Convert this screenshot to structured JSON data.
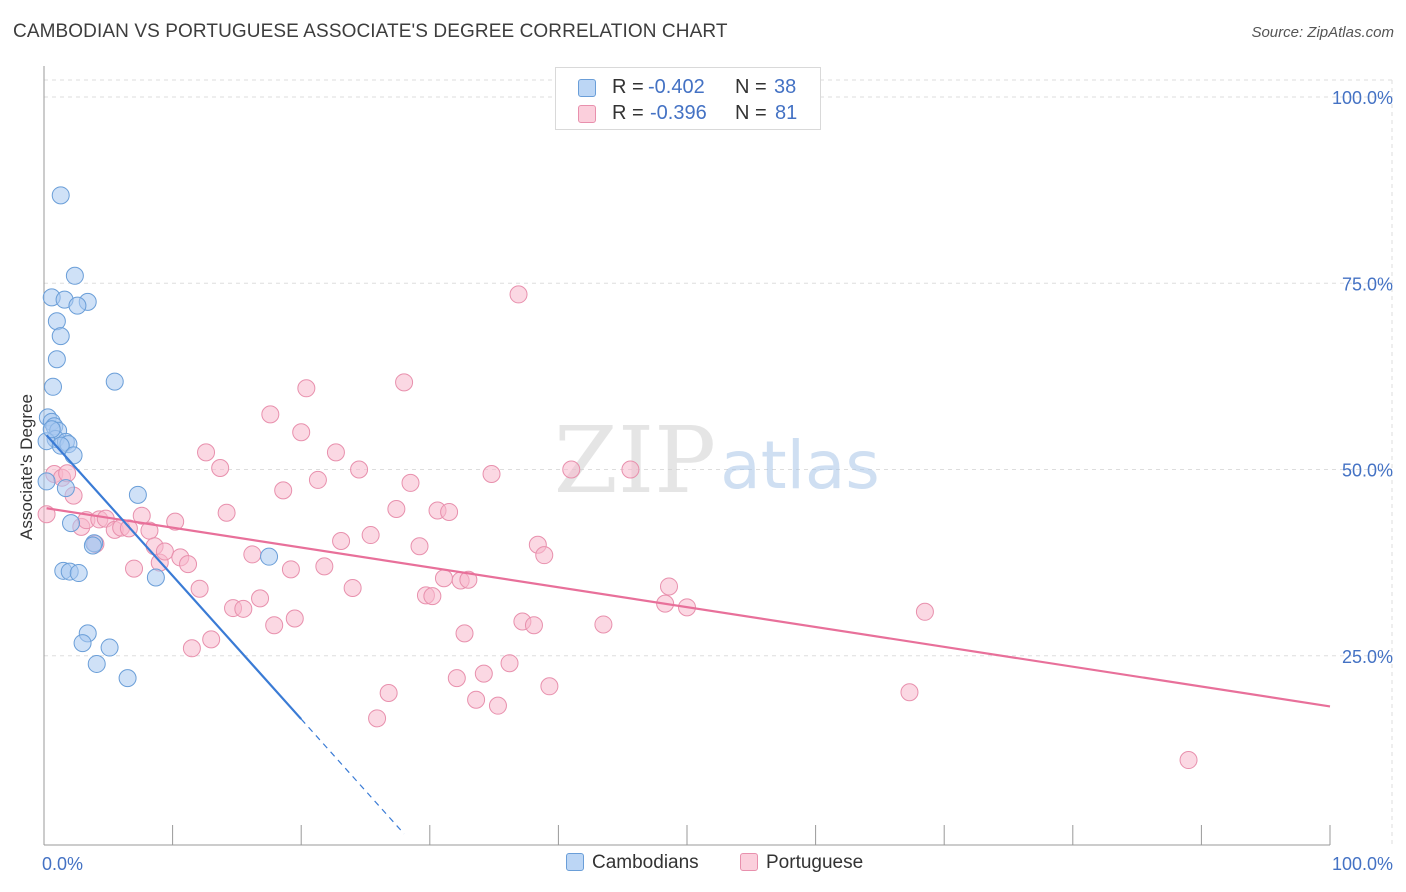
{
  "title": "CAMBODIAN VS PORTUGUESE ASSOCIATE'S DEGREE CORRELATION CHART",
  "source": "Source: ZipAtlas.com",
  "watermark": {
    "zip": "ZIP",
    "atlas": "atlas"
  },
  "legend": {
    "rows": [
      {
        "r_label": "R =",
        "r_value": "-0.402",
        "n_label": "N =",
        "n_value": "38"
      },
      {
        "r_label": "R =",
        "r_value": "-0.396",
        "n_label": "N =",
        "n_value": "81"
      }
    ]
  },
  "bottom_legend": {
    "cambodians": "Cambodians",
    "portuguese": "Portuguese"
  },
  "colors": {
    "cambodian_fill": "#a8c8f0",
    "cambodian_stroke": "#6a9ed8",
    "cambodian_line": "#3a7bd5",
    "portuguese_fill": "#f7b8cc",
    "portuguese_stroke": "#e890ad",
    "portuguese_line": "#e8709a",
    "axis_text": "#4472c4",
    "grid": "#dddddd"
  },
  "chart_data": {
    "type": "scatter",
    "title": "CAMBODIAN VS PORTUGUESE ASSOCIATE'S DEGREE CORRELATION CHART",
    "xlabel": "",
    "ylabel": "Associate's Degree",
    "xlim": [
      0,
      100
    ],
    "ylim": [
      0,
      100
    ],
    "x_tick_labels": {
      "min": "0.0%",
      "max": "100.0%"
    },
    "y_ticks": [
      {
        "value": 25,
        "label": "25.0%"
      },
      {
        "value": 50,
        "label": "50.0%"
      },
      {
        "value": 75,
        "label": "75.0%"
      },
      {
        "value": 100,
        "label": "100.0%"
      }
    ],
    "series": [
      {
        "name": "Cambodians",
        "r": -0.402,
        "n": 38,
        "trend": {
          "x0": 0.2,
          "y0": 54.6,
          "x1": 20.0,
          "y1": 16.5,
          "dash_to_x": 28.0,
          "dash_to_y": 1.1
        },
        "points": [
          [
            1.3,
            86.8
          ],
          [
            2.4,
            76.0
          ],
          [
            0.6,
            73.1
          ],
          [
            1.6,
            72.8
          ],
          [
            3.4,
            72.5
          ],
          [
            2.6,
            72.0
          ],
          [
            1.0,
            69.9
          ],
          [
            1.3,
            67.9
          ],
          [
            1.0,
            64.8
          ],
          [
            5.5,
            61.8
          ],
          [
            0.7,
            61.1
          ],
          [
            0.3,
            57.0
          ],
          [
            0.6,
            56.4
          ],
          [
            0.8,
            55.8
          ],
          [
            1.1,
            55.2
          ],
          [
            0.9,
            54.1
          ],
          [
            0.2,
            53.8
          ],
          [
            1.7,
            53.7
          ],
          [
            1.9,
            53.4
          ],
          [
            1.3,
            53.2
          ],
          [
            2.3,
            51.9
          ],
          [
            0.2,
            48.4
          ],
          [
            1.7,
            47.5
          ],
          [
            7.3,
            46.6
          ],
          [
            2.1,
            42.8
          ],
          [
            3.9,
            40.1
          ],
          [
            3.8,
            39.8
          ],
          [
            17.5,
            38.3
          ],
          [
            1.5,
            36.4
          ],
          [
            2.0,
            36.3
          ],
          [
            2.7,
            36.1
          ],
          [
            8.7,
            35.5
          ],
          [
            3.4,
            28.0
          ],
          [
            3.0,
            26.7
          ],
          [
            5.1,
            26.1
          ],
          [
            4.1,
            23.9
          ],
          [
            6.5,
            22.0
          ],
          [
            0.6,
            55.4
          ]
        ]
      },
      {
        "name": "Portuguese",
        "r": -0.396,
        "n": 81,
        "trend": {
          "x0": 0.2,
          "y0": 44.8,
          "x1": 100.0,
          "y1": 18.2
        },
        "points": [
          [
            0.2,
            44.0
          ],
          [
            0.8,
            49.4
          ],
          [
            1.4,
            48.9
          ],
          [
            1.8,
            49.5
          ],
          [
            2.3,
            46.5
          ],
          [
            2.9,
            42.3
          ],
          [
            3.3,
            43.2
          ],
          [
            4.0,
            40.0
          ],
          [
            4.3,
            43.3
          ],
          [
            4.8,
            43.4
          ],
          [
            5.5,
            41.9
          ],
          [
            6.0,
            42.2
          ],
          [
            6.6,
            42.1
          ],
          [
            7.0,
            36.7
          ],
          [
            7.6,
            43.8
          ],
          [
            8.2,
            41.8
          ],
          [
            8.6,
            39.7
          ],
          [
            9.0,
            37.5
          ],
          [
            9.4,
            39.0
          ],
          [
            10.2,
            43.0
          ],
          [
            10.6,
            38.2
          ],
          [
            11.2,
            37.3
          ],
          [
            12.1,
            34.0
          ],
          [
            12.6,
            52.3
          ],
          [
            13.0,
            27.2
          ],
          [
            13.7,
            50.2
          ],
          [
            14.2,
            44.2
          ],
          [
            14.7,
            31.4
          ],
          [
            15.5,
            31.3
          ],
          [
            16.2,
            38.6
          ],
          [
            16.8,
            32.7
          ],
          [
            17.6,
            57.4
          ],
          [
            17.9,
            29.1
          ],
          [
            18.6,
            47.2
          ],
          [
            19.2,
            36.6
          ],
          [
            19.5,
            30.0
          ],
          [
            20.0,
            55.0
          ],
          [
            20.4,
            60.9
          ],
          [
            21.3,
            48.6
          ],
          [
            21.8,
            37.0
          ],
          [
            22.7,
            52.3
          ],
          [
            23.1,
            40.4
          ],
          [
            24.0,
            34.1
          ],
          [
            24.5,
            50.0
          ],
          [
            25.4,
            41.2
          ],
          [
            25.9,
            16.6
          ],
          [
            26.8,
            20.0
          ],
          [
            27.4,
            44.7
          ],
          [
            28.0,
            61.7
          ],
          [
            28.5,
            48.2
          ],
          [
            29.2,
            39.7
          ],
          [
            29.7,
            33.1
          ],
          [
            30.2,
            33.0
          ],
          [
            30.6,
            44.5
          ],
          [
            31.1,
            35.4
          ],
          [
            31.5,
            44.3
          ],
          [
            32.1,
            22.0
          ],
          [
            32.4,
            35.1
          ],
          [
            32.7,
            28.0
          ],
          [
            33.0,
            35.2
          ],
          [
            33.6,
            19.1
          ],
          [
            34.2,
            22.6
          ],
          [
            34.8,
            49.4
          ],
          [
            35.3,
            18.3
          ],
          [
            36.2,
            24.0
          ],
          [
            36.9,
            73.5
          ],
          [
            37.2,
            29.6
          ],
          [
            38.1,
            29.1
          ],
          [
            38.4,
            39.9
          ],
          [
            38.9,
            38.5
          ],
          [
            39.3,
            20.9
          ],
          [
            41.0,
            50.0
          ],
          [
            43.5,
            29.2
          ],
          [
            45.6,
            50.0
          ],
          [
            48.3,
            32.0
          ],
          [
            48.6,
            34.3
          ],
          [
            50.0,
            31.5
          ],
          [
            68.5,
            30.9
          ],
          [
            67.3,
            20.1
          ],
          [
            89.0,
            11.0
          ],
          [
            11.5,
            26.0
          ]
        ]
      }
    ]
  }
}
